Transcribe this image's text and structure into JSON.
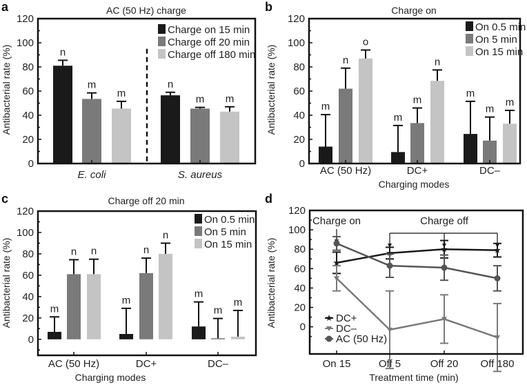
{
  "chart_data": [
    {
      "panel": "a",
      "type": "bar",
      "title": "AC (50 Hz) charge",
      "ylabel": "Antibacterial rate (%)",
      "xlabel": "",
      "ylim": [
        0,
        120
      ],
      "yticks": [
        0,
        20,
        40,
        60,
        80,
        100,
        120
      ],
      "categories": [
        "E. coli",
        "S. aureus"
      ],
      "series": [
        {
          "name": "Charge on 15 min",
          "color": "#1a1a1a",
          "values": [
            81,
            56.5
          ],
          "errors": [
            4.5,
            2.5
          ],
          "letters": [
            "n",
            "n"
          ]
        },
        {
          "name": "Charge off 20 min",
          "color": "#7a7a7a",
          "values": [
            53.5,
            45.5
          ],
          "errors": [
            5,
            1
          ],
          "letters": [
            "m",
            "m"
          ]
        },
        {
          "name": "Charge off 180 min",
          "color": "#c4c4c4",
          "values": [
            45.5,
            43
          ],
          "errors": [
            6,
            4
          ],
          "letters": [
            "m",
            "m"
          ]
        }
      ],
      "legend": "top-right"
    },
    {
      "panel": "b",
      "type": "bar",
      "title": "Charge on",
      "ylabel": "Antibacterial rate (%)",
      "xlabel": "Charging modes",
      "ylim": [
        0,
        120
      ],
      "yticks": [
        0,
        20,
        40,
        60,
        80,
        100,
        120
      ],
      "categories": [
        "AC (50 Hz)",
        "DC+",
        "DC–"
      ],
      "series": [
        {
          "name": "On 0.5 min",
          "color": "#1a1a1a",
          "values": [
            14,
            9.5,
            24.5
          ],
          "errors": [
            26.5,
            22,
            27
          ],
          "letters": [
            "m",
            "m",
            "m"
          ]
        },
        {
          "name": "On 5 min",
          "color": "#7a7a7a",
          "values": [
            62,
            33.5,
            19
          ],
          "errors": [
            17,
            12.5,
            19.5
          ],
          "letters": [
            "n",
            "m",
            "m"
          ]
        },
        {
          "name": "On 15 min",
          "color": "#c4c4c4",
          "values": [
            87,
            68.5,
            33
          ],
          "errors": [
            7,
            9,
            11
          ],
          "letters": [
            "o",
            "n",
            "m"
          ]
        }
      ],
      "legend": "top-right"
    },
    {
      "panel": "c",
      "type": "bar",
      "title": "Charge off 20 min",
      "ylabel": "Antibacterial rate (%)",
      "xlabel": "Charging modes",
      "ylim": [
        -15,
        120
      ],
      "yticks": [
        0,
        20,
        40,
        60,
        80,
        100,
        120
      ],
      "categories": [
        "AC (50 Hz)",
        "DC+",
        "DC–"
      ],
      "series": [
        {
          "name": "On 0.5 min",
          "color": "#1a1a1a",
          "values": [
            7,
            5,
            12
          ],
          "errors": [
            14,
            24,
            23
          ],
          "letters": [
            "m",
            "m",
            "m"
          ]
        },
        {
          "name": "On 5 min",
          "color": "#7a7a7a",
          "values": [
            61,
            62,
            1
          ],
          "errors": [
            13.5,
            14,
            18.5
          ],
          "letters": [
            "n",
            "n",
            "m"
          ]
        },
        {
          "name": "On 15 min",
          "color": "#c4c4c4",
          "values": [
            61,
            80,
            2.5
          ],
          "errors": [
            14,
            10,
            24.5
          ],
          "letters": [
            "n",
            "n",
            "m"
          ]
        }
      ],
      "legend": "top-right"
    },
    {
      "panel": "d",
      "type": "line",
      "title": "",
      "ylabel": "Antibacterial rate (%)",
      "xlabel": "Treatment time (min)",
      "ylim": [
        -28,
        120
      ],
      "yticks": [
        0,
        20,
        40,
        60,
        80,
        100,
        120
      ],
      "categories": [
        "On 15",
        "Off 5",
        "Off 20",
        "Off 180"
      ],
      "annotations": {
        "charge_on": "Charge on",
        "charge_off": "Charge off"
      },
      "series": [
        {
          "name": "DC+",
          "color": "#1a1a1a",
          "marker": "star",
          "values": [
            66,
            76,
            80,
            79
          ],
          "errors": [
            11,
            6,
            9,
            7
          ]
        },
        {
          "name": "DC–",
          "color": "#7a7a7a",
          "marker": "triangle-down",
          "values": [
            50,
            -3,
            8,
            -11
          ],
          "errors": [
            13,
            40,
            25,
            35
          ]
        },
        {
          "name": "AC (50 Hz)",
          "color": "#555555",
          "marker": "circle",
          "values": [
            86,
            63,
            61,
            50
          ],
          "errors": [
            7,
            12,
            13,
            13
          ]
        }
      ],
      "legend": "bottom-left"
    }
  ]
}
